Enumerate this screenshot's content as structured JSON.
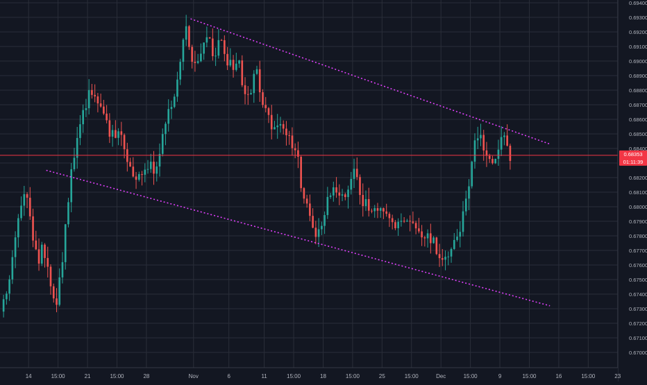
{
  "chart_data": {
    "type": "candlestick",
    "price_axis": {
      "range": [
        0.67,
        0.694
      ],
      "ticks": [
        "0.69400",
        "0.69300",
        "0.69200",
        "0.69100",
        "0.69000",
        "0.68900",
        "0.68800",
        "0.68700",
        "0.68600",
        "0.68500",
        "0.68400",
        "0.68300",
        "0.68200",
        "0.68100",
        "0.68000",
        "0.67900",
        "0.67800",
        "0.67700",
        "0.67600",
        "0.67500",
        "0.67400",
        "0.67300",
        "0.67200",
        "0.67100",
        "0.67000"
      ]
    },
    "time_axis": {
      "range_bars": [
        0,
        210
      ],
      "ticks": [
        {
          "label": "14",
          "bar": 9
        },
        {
          "label": "15:00",
          "bar": 19
        },
        {
          "label": "21",
          "bar": 29
        },
        {
          "label": "15:00",
          "bar": 39
        },
        {
          "label": "28",
          "bar": 49
        },
        {
          "label": "Nov",
          "bar": 65
        },
        {
          "label": "6",
          "bar": 77
        },
        {
          "label": "11",
          "bar": 89
        },
        {
          "label": "15:00",
          "bar": 99
        },
        {
          "label": "18",
          "bar": 109
        },
        {
          "label": "15:00",
          "bar": 119
        },
        {
          "label": "25",
          "bar": 129
        },
        {
          "label": "15:00",
          "bar": 139
        },
        {
          "label": "Dec",
          "bar": 149
        },
        {
          "label": "15:00",
          "bar": 159
        },
        {
          "label": "9",
          "bar": 169
        },
        {
          "label": "15:00",
          "bar": 179
        },
        {
          "label": "16",
          "bar": 189
        },
        {
          "label": "15:00",
          "bar": 199
        },
        {
          "label": "23",
          "bar": 209
        }
      ]
    },
    "current_price": {
      "value": 0.68353,
      "label": "0.68353",
      "countdown": "01:11:39"
    },
    "anchors": [
      [
        0,
        0.6728
      ],
      [
        3,
        0.6758
      ],
      [
        6,
        0.6797
      ],
      [
        8,
        0.6808
      ],
      [
        10,
        0.6786
      ],
      [
        12,
        0.676
      ],
      [
        14,
        0.6775
      ],
      [
        16,
        0.6748
      ],
      [
        18,
        0.6728
      ],
      [
        20,
        0.6755
      ],
      [
        22,
        0.6797
      ],
      [
        24,
        0.6832
      ],
      [
        26,
        0.6853
      ],
      [
        28,
        0.6866
      ],
      [
        30,
        0.6879
      ],
      [
        33,
        0.6872
      ],
      [
        35,
        0.6858
      ],
      [
        37,
        0.6848
      ],
      [
        40,
        0.6853
      ],
      [
        42,
        0.6836
      ],
      [
        44,
        0.6826
      ],
      [
        46,
        0.6818
      ],
      [
        48,
        0.6825
      ],
      [
        50,
        0.6831
      ],
      [
        52,
        0.6822
      ],
      [
        54,
        0.6846
      ],
      [
        56,
        0.686
      ],
      [
        58,
        0.6871
      ],
      [
        60,
        0.6888
      ],
      [
        62,
        0.6925
      ],
      [
        64,
        0.6905
      ],
      [
        66,
        0.6894
      ],
      [
        68,
        0.6909
      ],
      [
        70,
        0.6922
      ],
      [
        72,
        0.6894
      ],
      [
        74,
        0.6916
      ],
      [
        76,
        0.6903
      ],
      [
        78,
        0.6895
      ],
      [
        80,
        0.6905
      ],
      [
        82,
        0.6882
      ],
      [
        84,
        0.6871
      ],
      [
        86,
        0.6897
      ],
      [
        88,
        0.6878
      ],
      [
        90,
        0.6862
      ],
      [
        92,
        0.6852
      ],
      [
        95,
        0.6855
      ],
      [
        98,
        0.6843
      ],
      [
        100,
        0.684
      ],
      [
        102,
        0.6808
      ],
      [
        104,
        0.6797
      ],
      [
        106,
        0.6782
      ],
      [
        108,
        0.6787
      ],
      [
        110,
        0.6799
      ],
      [
        112,
        0.6815
      ],
      [
        114,
        0.681
      ],
      [
        116,
        0.6803
      ],
      [
        118,
        0.6815
      ],
      [
        120,
        0.6824
      ],
      [
        122,
        0.6805
      ],
      [
        125,
        0.6798
      ],
      [
        128,
        0.6797
      ],
      [
        131,
        0.6792
      ],
      [
        134,
        0.6786
      ],
      [
        137,
        0.6795
      ],
      [
        140,
        0.6785
      ],
      [
        142,
        0.6778
      ],
      [
        145,
        0.6781
      ],
      [
        147,
        0.6773
      ],
      [
        149,
        0.6765
      ],
      [
        151,
        0.6768
      ],
      [
        153,
        0.6773
      ],
      [
        155,
        0.6782
      ],
      [
        157,
        0.6802
      ],
      [
        159,
        0.6824
      ],
      [
        161,
        0.6852
      ],
      [
        163,
        0.6845
      ],
      [
        165,
        0.6835
      ],
      [
        167,
        0.6825
      ],
      [
        169,
        0.6842
      ],
      [
        171,
        0.6848
      ],
      [
        172,
        0.6835
      ]
    ],
    "trendlines": [
      {
        "from": [
          64,
          0.6929
        ],
        "to": [
          186,
          0.6843
        ],
        "style": "dotted",
        "color": "#e040fb"
      },
      {
        "from": [
          15,
          0.6825
        ],
        "to": [
          186,
          0.6732
        ],
        "style": "dotted",
        "color": "#e040fb"
      }
    ],
    "colors": {
      "background": "#131722",
      "grid": "#2a2e39",
      "up": "#26a69a",
      "down": "#ef5350",
      "axis_text": "#b2b5be",
      "price_line": "#f23645",
      "trendline": "#e040fb"
    },
    "grid": true
  }
}
